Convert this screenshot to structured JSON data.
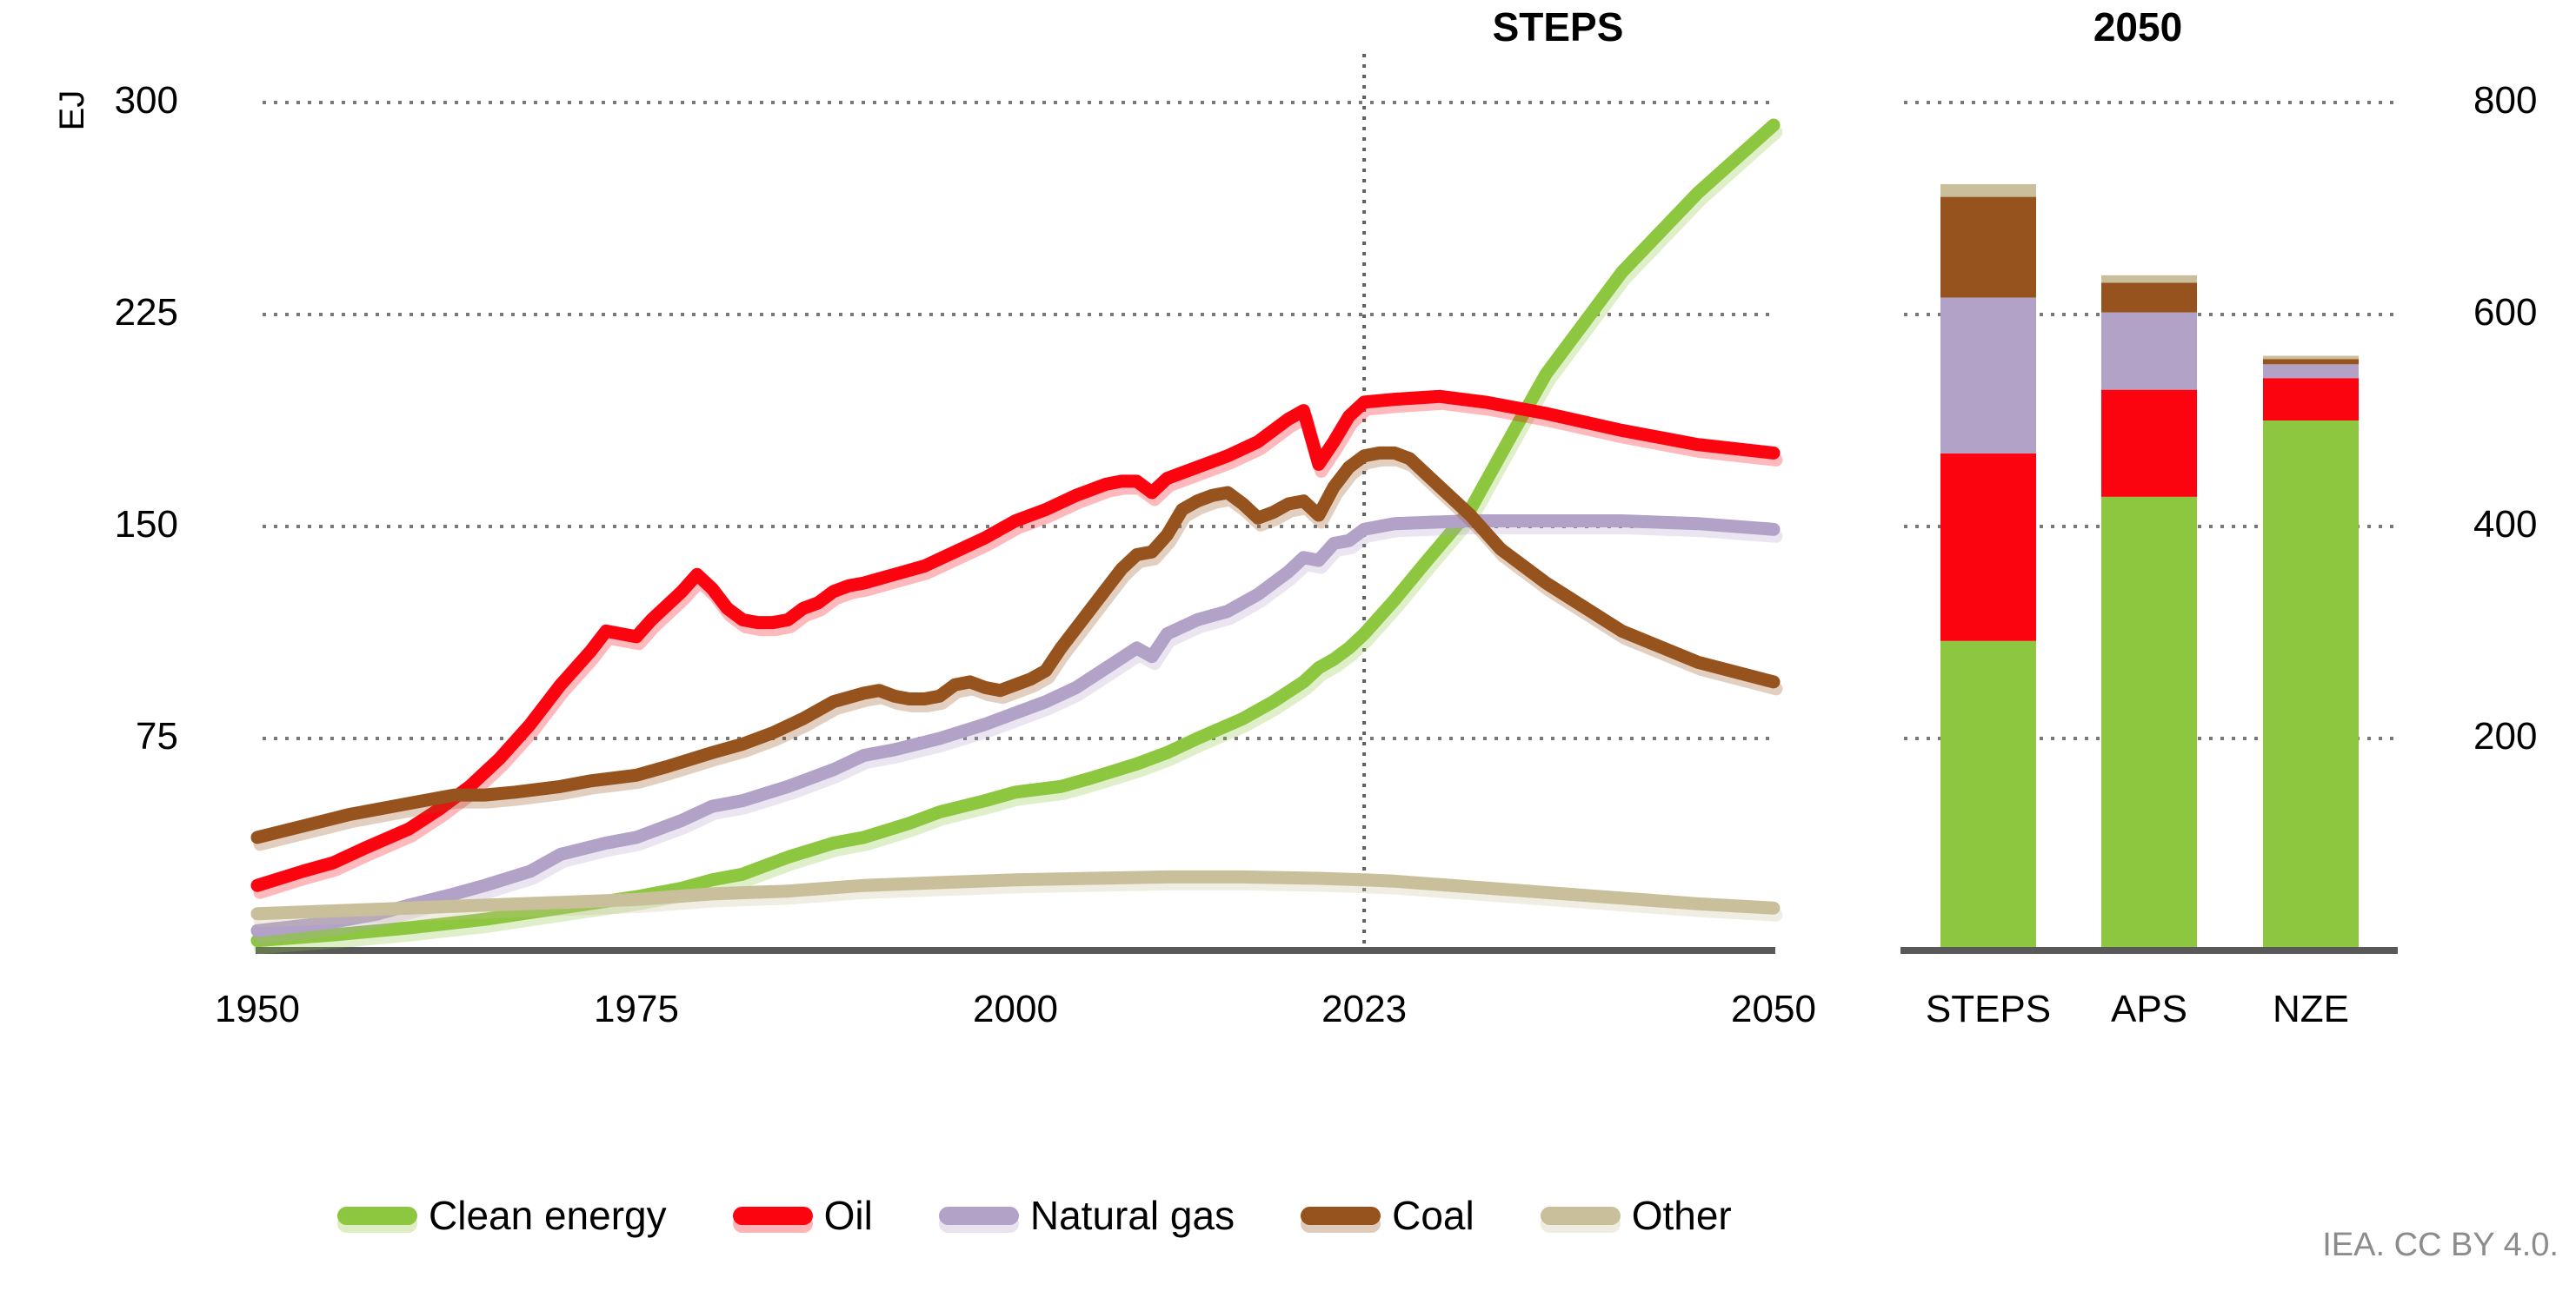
{
  "footer": {
    "credit": "IEA. CC BY 4.0."
  },
  "legend": {
    "items": [
      {
        "label": "Clean energy",
        "color": "#8dc63f"
      },
      {
        "label": "Oil",
        "color": "#fb0410"
      },
      {
        "label": "Natural gas",
        "color": "#b3a2c8"
      },
      {
        "label": "Coal",
        "color": "#96531d"
      },
      {
        "label": "Other",
        "color": "#c9c09b"
      }
    ]
  },
  "style_colors": {
    "grid": "#787878",
    "axis_line": "#595959",
    "vline": "#5f5f5f"
  },
  "chart_data": [
    {
      "type": "line",
      "title": "STEPS",
      "ylabel": "EJ",
      "unit": "EJ",
      "xlim": [
        1950,
        2050
      ],
      "ylim": [
        0,
        300
      ],
      "yticks": [
        75,
        150,
        225,
        300
      ],
      "xticks": [
        1950,
        1975,
        2000,
        2023,
        2050
      ],
      "vline_x": 2023,
      "grid": "dotted-horizontal",
      "series": [
        {
          "name": "Clean energy",
          "color": "#8dc63f",
          "points": [
            [
              1950,
              3.5
            ],
            [
              1955,
              5.5
            ],
            [
              1960,
              8
            ],
            [
              1965,
              11
            ],
            [
              1970,
              15
            ],
            [
              1975,
              19
            ],
            [
              1978,
              22
            ],
            [
              1980,
              25
            ],
            [
              1982,
              27
            ],
            [
              1985,
              33
            ],
            [
              1988,
              38
            ],
            [
              1990,
              40
            ],
            [
              1993,
              45
            ],
            [
              1995,
              49
            ],
            [
              1998,
              53
            ],
            [
              2000,
              56
            ],
            [
              2003,
              58
            ],
            [
              2005,
              61
            ],
            [
              2008,
              66
            ],
            [
              2010,
              70
            ],
            [
              2012,
              75
            ],
            [
              2015,
              82
            ],
            [
              2017,
              88
            ],
            [
              2019,
              95
            ],
            [
              2020,
              100
            ],
            [
              2021,
              103
            ],
            [
              2022,
              107
            ],
            [
              2023,
              112
            ],
            [
              2025,
              124
            ],
            [
              2027,
              137
            ],
            [
              2030,
              156
            ],
            [
              2033,
              185
            ],
            [
              2035,
              204
            ],
            [
              2040,
              240
            ],
            [
              2045,
              268
            ],
            [
              2050,
              292
            ]
          ]
        },
        {
          "name": "Oil",
          "color": "#fb0410",
          "points": [
            [
              1950,
              23
            ],
            [
              1953,
              28
            ],
            [
              1955,
              31
            ],
            [
              1957,
              36
            ],
            [
              1960,
              43
            ],
            [
              1962,
              50
            ],
            [
              1964,
              58
            ],
            [
              1966,
              68
            ],
            [
              1968,
              80
            ],
            [
              1970,
              94
            ],
            [
              1971,
              100
            ],
            [
              1972,
              106
            ],
            [
              1973,
              113
            ],
            [
              1974,
              112
            ],
            [
              1975,
              111
            ],
            [
              1976,
              117
            ],
            [
              1977,
              122
            ],
            [
              1978,
              127
            ],
            [
              1979,
              133
            ],
            [
              1980,
              128
            ],
            [
              1981,
              121
            ],
            [
              1982,
              117
            ],
            [
              1983,
              116
            ],
            [
              1984,
              116
            ],
            [
              1985,
              117
            ],
            [
              1986,
              121
            ],
            [
              1987,
              123
            ],
            [
              1988,
              127
            ],
            [
              1989,
              129
            ],
            [
              1990,
              130
            ],
            [
              1992,
              133
            ],
            [
              1994,
              136
            ],
            [
              1996,
              141
            ],
            [
              1998,
              146
            ],
            [
              2000,
              152
            ],
            [
              2002,
              156
            ],
            [
              2004,
              161
            ],
            [
              2005,
              163
            ],
            [
              2006,
              165
            ],
            [
              2007,
              166
            ],
            [
              2008,
              166
            ],
            [
              2009,
              162
            ],
            [
              2010,
              167
            ],
            [
              2012,
              171
            ],
            [
              2014,
              175
            ],
            [
              2016,
              180
            ],
            [
              2018,
              188
            ],
            [
              2019,
              191
            ],
            [
              2020,
              172
            ],
            [
              2021,
              180
            ],
            [
              2022,
              189
            ],
            [
              2023,
              194
            ],
            [
              2025,
              195
            ],
            [
              2028,
              196
            ],
            [
              2031,
              194
            ],
            [
              2033,
              192
            ],
            [
              2035,
              190
            ],
            [
              2040,
              184
            ],
            [
              2045,
              179
            ],
            [
              2050,
              176
            ]
          ]
        },
        {
          "name": "Natural gas",
          "color": "#b3a2c8",
          "points": [
            [
              1950,
              7
            ],
            [
              1955,
              10
            ],
            [
              1958,
              13
            ],
            [
              1960,
              16
            ],
            [
              1963,
              20
            ],
            [
              1965,
              23
            ],
            [
              1968,
              28
            ],
            [
              1970,
              34
            ],
            [
              1973,
              38
            ],
            [
              1975,
              40
            ],
            [
              1978,
              46
            ],
            [
              1980,
              51
            ],
            [
              1982,
              53
            ],
            [
              1985,
              58
            ],
            [
              1988,
              64
            ],
            [
              1990,
              69
            ],
            [
              1992,
              71
            ],
            [
              1995,
              75
            ],
            [
              1998,
              80
            ],
            [
              2000,
              84
            ],
            [
              2002,
              88
            ],
            [
              2004,
              93
            ],
            [
              2006,
              100
            ],
            [
              2008,
              107
            ],
            [
              2009,
              104
            ],
            [
              2010,
              112
            ],
            [
              2012,
              117
            ],
            [
              2014,
              120
            ],
            [
              2016,
              126
            ],
            [
              2018,
              134
            ],
            [
              2019,
              139
            ],
            [
              2020,
              138
            ],
            [
              2021,
              144
            ],
            [
              2022,
              145
            ],
            [
              2023,
              149
            ],
            [
              2025,
              151
            ],
            [
              2030,
              152
            ],
            [
              2035,
              152
            ],
            [
              2040,
              152
            ],
            [
              2045,
              151
            ],
            [
              2050,
              149
            ]
          ]
        },
        {
          "name": "Coal",
          "color": "#96531d",
          "points": [
            [
              1950,
              40
            ],
            [
              1953,
              44
            ],
            [
              1956,
              48
            ],
            [
              1958,
              50
            ],
            [
              1960,
              52
            ],
            [
              1963,
              55
            ],
            [
              1965,
              55
            ],
            [
              1967,
              56
            ],
            [
              1970,
              58
            ],
            [
              1972,
              60
            ],
            [
              1975,
              62
            ],
            [
              1977,
              65
            ],
            [
              1980,
              70
            ],
            [
              1982,
              73
            ],
            [
              1984,
              77
            ],
            [
              1986,
              82
            ],
            [
              1988,
              88
            ],
            [
              1990,
              91
            ],
            [
              1991,
              92
            ],
            [
              1992,
              90
            ],
            [
              1993,
              89
            ],
            [
              1994,
              89
            ],
            [
              1995,
              90
            ],
            [
              1996,
              94
            ],
            [
              1997,
              95
            ],
            [
              1998,
              93
            ],
            [
              1999,
              92
            ],
            [
              2000,
              94
            ],
            [
              2001,
              96
            ],
            [
              2002,
              99
            ],
            [
              2003,
              107
            ],
            [
              2004,
              114
            ],
            [
              2005,
              121
            ],
            [
              2006,
              128
            ],
            [
              2007,
              135
            ],
            [
              2008,
              140
            ],
            [
              2009,
              141
            ],
            [
              2010,
              147
            ],
            [
              2011,
              156
            ],
            [
              2012,
              159
            ],
            [
              2013,
              161
            ],
            [
              2014,
              162
            ],
            [
              2015,
              158
            ],
            [
              2016,
              153
            ],
            [
              2017,
              155
            ],
            [
              2018,
              158
            ],
            [
              2019,
              159
            ],
            [
              2020,
              154
            ],
            [
              2021,
              164
            ],
            [
              2022,
              171
            ],
            [
              2023,
              175
            ],
            [
              2024,
              176
            ],
            [
              2025,
              176
            ],
            [
              2026,
              174
            ],
            [
              2027,
              169
            ],
            [
              2028,
              164
            ],
            [
              2030,
              154
            ],
            [
              2032,
              142
            ],
            [
              2035,
              130
            ],
            [
              2040,
              113
            ],
            [
              2045,
              102
            ],
            [
              2050,
              95
            ]
          ]
        },
        {
          "name": "Other",
          "color": "#c9c09b",
          "points": [
            [
              1950,
              13
            ],
            [
              1955,
              14
            ],
            [
              1960,
              15
            ],
            [
              1965,
              16
            ],
            [
              1970,
              17
            ],
            [
              1975,
              18
            ],
            [
              1980,
              20
            ],
            [
              1985,
              21
            ],
            [
              1990,
              23
            ],
            [
              1995,
              24
            ],
            [
              2000,
              25
            ],
            [
              2005,
              25.5
            ],
            [
              2010,
              26
            ],
            [
              2015,
              26
            ],
            [
              2020,
              25.5
            ],
            [
              2023,
              25
            ],
            [
              2025,
              24.5
            ],
            [
              2030,
              22.5
            ],
            [
              2035,
              20.5
            ],
            [
              2040,
              18.5
            ],
            [
              2045,
              16.5
            ],
            [
              2050,
              15
            ]
          ]
        }
      ]
    },
    {
      "type": "stacked-bar",
      "title": "2050",
      "categories": [
        "STEPS",
        "APS",
        "NZE"
      ],
      "ylim": [
        0,
        800
      ],
      "yticks": [
        200,
        400,
        600,
        800
      ],
      "yaxis_side": "right",
      "series": [
        {
          "name": "Clean energy",
          "color": "#8dc63f",
          "values": [
            292,
            428,
            500
          ]
        },
        {
          "name": "Oil",
          "color": "#fb0410",
          "values": [
            177,
            101,
            40
          ]
        },
        {
          "name": "Natural gas",
          "color": "#b3a2c8",
          "values": [
            147,
            73,
            13
          ]
        },
        {
          "name": "Coal",
          "color": "#96531d",
          "values": [
            95,
            28,
            5
          ]
        },
        {
          "name": "Other",
          "color": "#c9c09b",
          "values": [
            12,
            7,
            3
          ]
        }
      ]
    }
  ]
}
